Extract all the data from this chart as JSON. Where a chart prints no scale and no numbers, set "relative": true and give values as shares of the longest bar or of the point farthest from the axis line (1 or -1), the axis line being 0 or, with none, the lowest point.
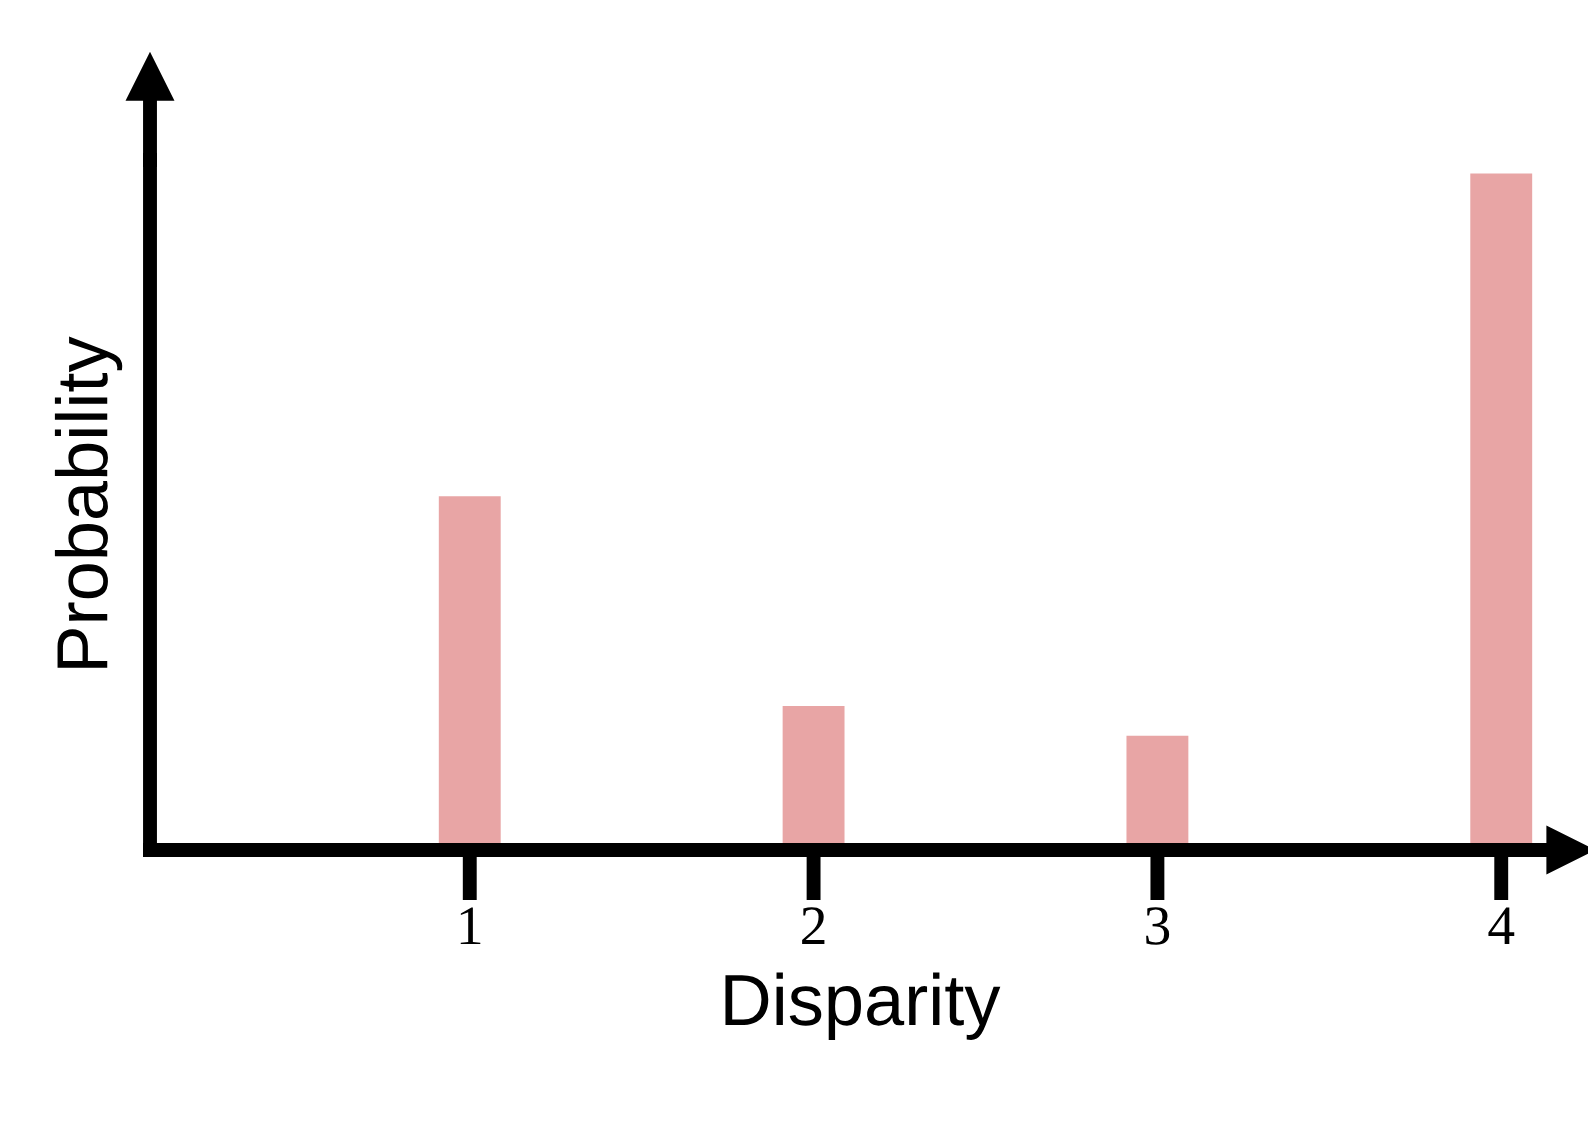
{
  "chart_data": {
    "type": "bar",
    "xlabel": "Disparity",
    "ylabel": "Probability",
    "categories": [
      "1",
      "2",
      "3",
      "4"
    ],
    "values": [
      0.523,
      0.213,
      0.169,
      1
    ],
    "color": "#e8a5a5",
    "relative": true,
    "grid": false,
    "legend": false
  }
}
